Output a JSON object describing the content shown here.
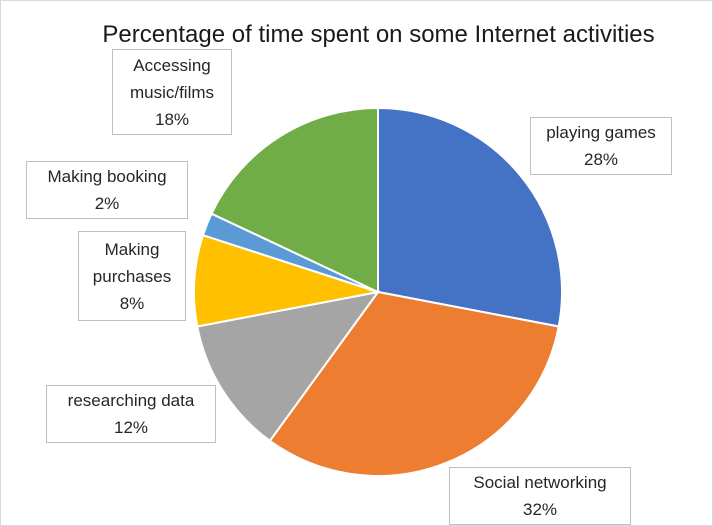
{
  "chart_data": {
    "type": "pie",
    "title": "Percentage of time spent on some Internet activities",
    "categories": [
      "playing games",
      "Social networking",
      "researching data",
      "Making purchases",
      "Making booking",
      "Accessing music/films"
    ],
    "values": [
      28,
      32,
      12,
      8,
      2,
      18
    ],
    "value_labels": [
      "28%",
      "32%",
      "12%",
      "8%",
      "2%",
      "18%"
    ],
    "label_lines": [
      [
        "playing games"
      ],
      [
        "Social networking"
      ],
      [
        "researching data"
      ],
      [
        "Making",
        "purchases"
      ],
      [
        "Making booking"
      ],
      [
        "Accessing",
        "music/films"
      ]
    ],
    "colors": [
      "#4472c4",
      "#ed7d31",
      "#a5a5a5",
      "#ffc000",
      "#5b9bd5",
      "#70ad47"
    ],
    "start_angle": 0,
    "direction": "clockwise",
    "legend": "none"
  }
}
